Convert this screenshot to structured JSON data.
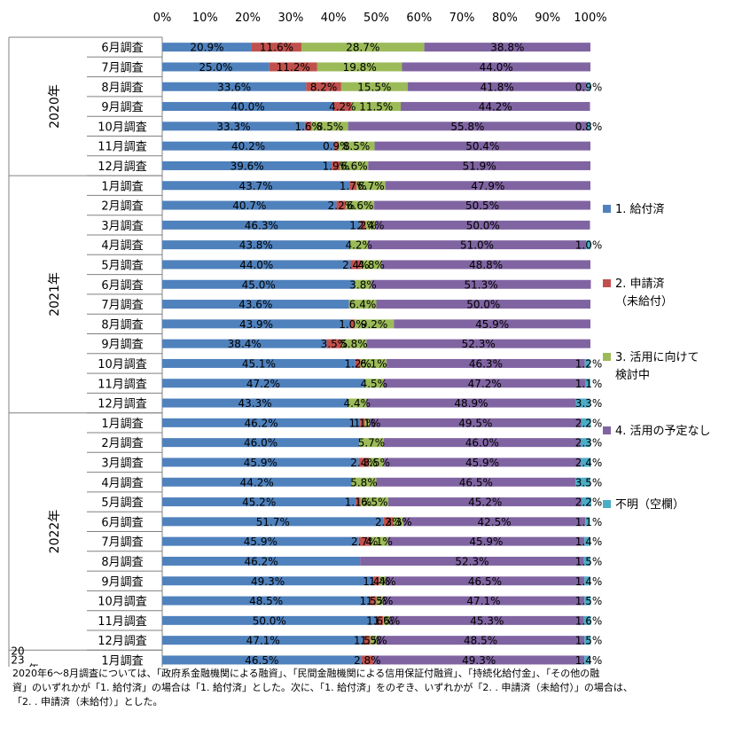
{
  "chart_data": {
    "type": "bar",
    "orientation": "horizontal",
    "stacked": "percent",
    "x_ticks": [
      "0%",
      "10%",
      "20%",
      "30%",
      "40%",
      "50%",
      "60%",
      "70%",
      "80%",
      "90%",
      "100%"
    ],
    "xlim": [
      0,
      100
    ],
    "colors": [
      "#4f81bd",
      "#c0504d",
      "#9bbb59",
      "#8064a2",
      "#4bacc6"
    ],
    "series": [
      {
        "name": "1. 給付済",
        "display": [
          "1. 給付済"
        ]
      },
      {
        "name": "2. 申請済（未給付）",
        "display": [
          "2. 申請済",
          "（未給付）"
        ]
      },
      {
        "name": "3. 活用に向けて検討中",
        "display": [
          "3. 活用に向けて",
          "検討中"
        ]
      },
      {
        "name": "4. 活用の予定なし",
        "display": [
          "4. 活用の予定なし"
        ]
      },
      {
        "name": "不明（空欄）",
        "display": [
          "不明（空欄）"
        ]
      }
    ],
    "groups": [
      {
        "label": "2020年",
        "count": 7
      },
      {
        "label": "2021年",
        "count": 12
      },
      {
        "label": "2022年",
        "count": 12
      },
      {
        "label": "2023年",
        "count": 1,
        "label_lines": [
          "20",
          "23",
          "年"
        ]
      }
    ],
    "rows": [
      {
        "label": "6月調査",
        "values": [
          20.9,
          11.6,
          28.7,
          38.8,
          0
        ],
        "labels": [
          "20.9%",
          "11.6%",
          "28.7%",
          "38.8%",
          ""
        ]
      },
      {
        "label": "7月調査",
        "values": [
          25.0,
          11.2,
          19.8,
          44.0,
          0
        ],
        "labels": [
          "25.0%",
          "11.2%",
          "19.8%",
          "44.0%",
          ""
        ]
      },
      {
        "label": "8月調査",
        "values": [
          33.6,
          8.2,
          15.5,
          41.8,
          0.9
        ],
        "labels": [
          "33.6%",
          "8.2%",
          "15.5%",
          "41.8%",
          "0.9%"
        ]
      },
      {
        "label": "9月調査",
        "values": [
          40.0,
          4.2,
          11.5,
          44.2,
          0
        ],
        "labels": [
          "40.0%",
          "4.2%",
          "11.5%",
          "44.2%",
          ""
        ]
      },
      {
        "label": "10月調査",
        "values": [
          33.3,
          1.6,
          8.5,
          55.8,
          0.8
        ],
        "labels": [
          "33.3%",
          "1.6%",
          "8.5%",
          "55.8%",
          "0.8%"
        ]
      },
      {
        "label": "11月調査",
        "values": [
          40.2,
          0.9,
          8.5,
          50.4,
          0
        ],
        "labels": [
          "40.2%",
          "0.9%",
          "8.5%",
          "50.4%",
          ""
        ]
      },
      {
        "label": "12月調査",
        "values": [
          39.6,
          1.9,
          6.6,
          51.9,
          0
        ],
        "labels": [
          "39.6%",
          "1.9%",
          "6.6%",
          "51.9%",
          ""
        ]
      },
      {
        "label": "1月調査",
        "values": [
          43.7,
          1.7,
          6.7,
          47.9,
          0
        ],
        "labels": [
          "43.7%",
          "1.7%",
          "6.7%",
          "47.9%",
          ""
        ]
      },
      {
        "label": "2月調査",
        "values": [
          40.7,
          2.2,
          6.6,
          50.5,
          0
        ],
        "labels": [
          "40.7%",
          "2.2%",
          "6.6%",
          "50.5%",
          ""
        ]
      },
      {
        "label": "3月調査",
        "values": [
          46.3,
          1.2,
          2.4,
          50.0,
          0
        ],
        "labels": [
          "46.3%",
          "1.2%",
          "2.4%",
          "50.0%",
          ""
        ]
      },
      {
        "label": "4月調査",
        "values": [
          43.8,
          0,
          4.2,
          51.0,
          1.0
        ],
        "labels": [
          "43.8%",
          "",
          "4.2%",
          "51.0%",
          "1.0%"
        ]
      },
      {
        "label": "5月調査",
        "values": [
          44.0,
          2.4,
          4.8,
          48.8,
          0
        ],
        "labels": [
          "44.0%",
          "2.4%",
          "4.8%",
          "48.8%",
          ""
        ]
      },
      {
        "label": "6月調査",
        "values": [
          45.0,
          0,
          3.8,
          51.3,
          0
        ],
        "labels": [
          "45.0%",
          "",
          "3.8%",
          "51.3%",
          ""
        ]
      },
      {
        "label": "7月調査",
        "values": [
          43.6,
          0,
          6.4,
          50.0,
          0
        ],
        "labels": [
          "43.6%",
          "",
          "6.4%",
          "50.0%",
          ""
        ]
      },
      {
        "label": "8月調査",
        "values": [
          43.9,
          1.0,
          9.2,
          45.9,
          0
        ],
        "labels": [
          "43.9%",
          "1.0%",
          "9.2%",
          "45.9%",
          ""
        ]
      },
      {
        "label": "9月調査",
        "values": [
          38.4,
          3.5,
          5.8,
          52.3,
          0
        ],
        "labels": [
          "38.4%",
          "3.5%",
          "5.8%",
          "52.3%",
          ""
        ]
      },
      {
        "label": "10月調査",
        "values": [
          45.1,
          1.2,
          6.1,
          46.3,
          1.2
        ],
        "labels": [
          "45.1%",
          "1.2%",
          "6.1%",
          "46.3%",
          "1.2%"
        ]
      },
      {
        "label": "11月調査",
        "values": [
          47.2,
          0,
          4.5,
          47.2,
          1.1
        ],
        "labels": [
          "47.2%",
          "",
          "4.5%",
          "47.2%",
          "1.1%"
        ]
      },
      {
        "label": "12月調査",
        "values": [
          43.3,
          0,
          4.4,
          48.9,
          3.3
        ],
        "labels": [
          "43.3%",
          "",
          "4.4%",
          "48.9%",
          "3.3%"
        ]
      },
      {
        "label": "1月調査",
        "values": [
          46.2,
          1.1,
          1.1,
          49.5,
          2.2
        ],
        "labels": [
          "46.2%",
          "1.1%",
          "1.1%",
          "49.5%",
          "2.2%"
        ]
      },
      {
        "label": "2月調査",
        "values": [
          46.0,
          0,
          5.7,
          46.0,
          2.3
        ],
        "labels": [
          "46.0%",
          "",
          "5.7%",
          "46.0%",
          "2.3%"
        ]
      },
      {
        "label": "3月調査",
        "values": [
          45.9,
          2.4,
          3.5,
          45.9,
          2.4
        ],
        "labels": [
          "45.9%",
          "2.4%",
          "3.5%",
          "45.9%",
          "2.4%"
        ]
      },
      {
        "label": "4月調査",
        "values": [
          44.2,
          0,
          5.8,
          46.5,
          3.5
        ],
        "labels": [
          "44.2%",
          "",
          "5.8%",
          "46.5%",
          "3.5%"
        ]
      },
      {
        "label": "5月調査",
        "values": [
          45.2,
          1.1,
          6.5,
          45.2,
          2.2
        ],
        "labels": [
          "45.2%",
          "1.1%",
          "6.5%",
          "45.2%",
          "2.2%"
        ]
      },
      {
        "label": "6月調査",
        "values": [
          51.7,
          2.3,
          2.3,
          42.5,
          1.1
        ],
        "labels": [
          "51.7%",
          "2.3%",
          "2.3%",
          "42.5%",
          "1.1%"
        ]
      },
      {
        "label": "7月調査",
        "values": [
          45.9,
          2.7,
          4.1,
          45.9,
          1.4
        ],
        "labels": [
          "45.9%",
          "2.7%",
          "4.1%",
          "45.9%",
          "1.4%"
        ]
      },
      {
        "label": "8月調査",
        "values": [
          46.2,
          0,
          0,
          52.3,
          1.5
        ],
        "labels": [
          "46.2%",
          "",
          "",
          "52.3%",
          "1.5%"
        ]
      },
      {
        "label": "9月調査",
        "values": [
          49.3,
          1.4,
          1.4,
          46.5,
          1.4
        ],
        "labels": [
          "49.3%",
          "1.4%",
          "1.4%",
          "46.5%",
          "1.4%"
        ]
      },
      {
        "label": "10月調査",
        "values": [
          48.5,
          1.5,
          1.5,
          47.1,
          1.5
        ],
        "labels": [
          "48.5%",
          "1.5%",
          "1.5%",
          "47.1%",
          "1.5%"
        ]
      },
      {
        "label": "11月調査",
        "values": [
          50.0,
          1.6,
          1.6,
          45.3,
          1.6
        ],
        "labels": [
          "50.0%",
          "1.6%",
          "1.6%",
          "45.3%",
          "1.6%"
        ]
      },
      {
        "label": "12月調査",
        "values": [
          47.1,
          1.5,
          1.5,
          48.5,
          1.5
        ],
        "labels": [
          "47.1%",
          "1.5%",
          "1.5%",
          "48.5%",
          "1.5%"
        ]
      },
      {
        "label": "1月調査",
        "values": [
          46.5,
          2.8,
          0,
          49.3,
          1.4
        ],
        "labels": [
          "46.5%",
          "2.8%",
          "",
          "49.3%",
          "1.4%"
        ]
      }
    ],
    "legend_position": "right",
    "grid": false
  },
  "note_lines": [
    "2020年6～8月調査については、「政府系金融機関による融資」、「民間金融機関による信用保証付融資」、「持続化給付金」、「その他の融",
    "資」のいずれかが「1. 給付済」の場合は「1. 給付済」とした。次に、「1. 給付済」をのぞき、いずれかが「2. . 申請済（未給付）」の場合は、",
    "「2. . 申請済（未給付）」とした。"
  ]
}
